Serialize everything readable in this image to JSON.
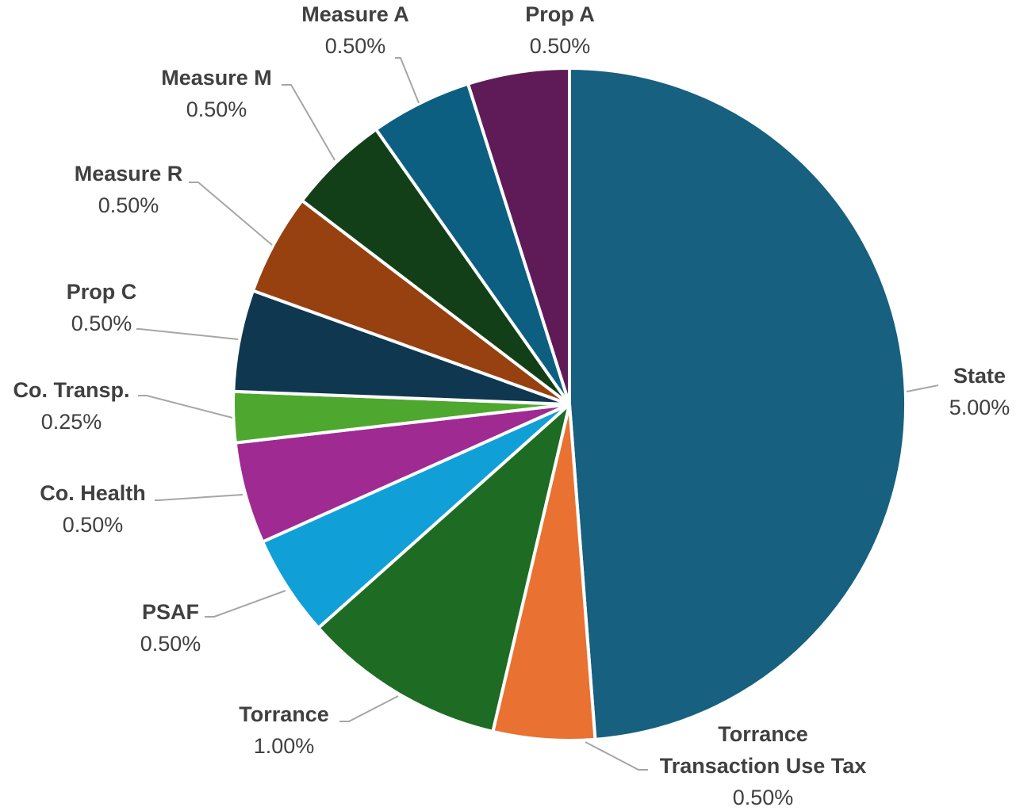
{
  "chart_data": {
    "type": "pie",
    "title": "",
    "start_angle_deg": 0,
    "direction": "clockwise",
    "label_style": "category name and percentage outside with leader lines",
    "slices": [
      {
        "name": "State",
        "name_lines": [
          "State"
        ],
        "value": 5.0,
        "value_label": "5.00%",
        "color": "#17607f"
      },
      {
        "name": "Torrance Transaction Use Tax",
        "name_lines": [
          "Torrance",
          "Transaction Use Tax"
        ],
        "value": 0.5,
        "value_label": "0.50%",
        "color": "#e97132"
      },
      {
        "name": "Torrance",
        "name_lines": [
          "Torrance"
        ],
        "value": 1.0,
        "value_label": "1.00%",
        "color": "#1e6b24"
      },
      {
        "name": "PSAF",
        "name_lines": [
          "PSAF"
        ],
        "value": 0.5,
        "value_label": "0.50%",
        "color": "#119fd7"
      },
      {
        "name": "Co. Health",
        "name_lines": [
          "Co. Health"
        ],
        "value": 0.5,
        "value_label": "0.50%",
        "color": "#9f2a91"
      },
      {
        "name": "Co. Transp.",
        "name_lines": [
          "Co. Transp."
        ],
        "value": 0.25,
        "value_label": "0.25%",
        "color": "#4ea72e"
      },
      {
        "name": "Prop C",
        "name_lines": [
          "Prop C"
        ],
        "value": 0.5,
        "value_label": "0.50%",
        "color": "#0f374f"
      },
      {
        "name": "Measure R",
        "name_lines": [
          "Measure R"
        ],
        "value": 0.5,
        "value_label": "0.50%",
        "color": "#974010"
      },
      {
        "name": "Measure M",
        "name_lines": [
          "Measure M"
        ],
        "value": 0.5,
        "value_label": "0.50%",
        "color": "#123f17"
      },
      {
        "name": "Measure A",
        "name_lines": [
          "Measure A"
        ],
        "value": 0.5,
        "value_label": "0.50%",
        "color": "#0c5f80"
      },
      {
        "name": "Prop A",
        "name_lines": [
          "Prop A"
        ],
        "value": 0.5,
        "value_label": "0.50%",
        "color": "#5f1b58"
      }
    ]
  }
}
